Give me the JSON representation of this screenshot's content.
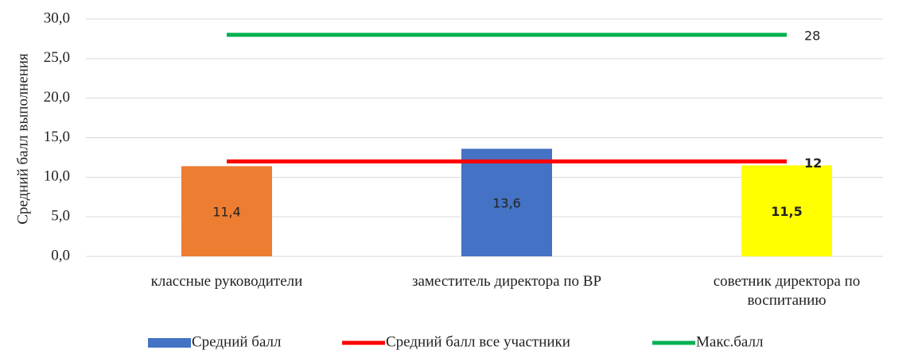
{
  "chart_data": {
    "type": "bar",
    "y_label": "Средний балл выполнения",
    "categories": [
      "классные руководители",
      "заместитель директора по ВР",
      "советник директора по воспитанию"
    ],
    "series": [
      {
        "name": "Средний балл",
        "type": "bar",
        "colors": [
          "#ed7d31",
          "#4472c4",
          "#ffff00"
        ],
        "values": [
          11.4,
          13.6,
          11.5
        ],
        "value_labels": [
          "11,4",
          "13,6",
          "11,5"
        ],
        "label_colors": [
          "#ffffff",
          "#ffffff",
          "#404040"
        ]
      },
      {
        "name": "Средний балл все участники",
        "type": "line",
        "color": "#ff0000",
        "values": [
          12,
          12,
          12
        ],
        "value_labels": [
          null,
          null,
          "12"
        ]
      },
      {
        "name": "Макс.балл",
        "type": "line",
        "color": "#00b050",
        "values": [
          28,
          28,
          28
        ],
        "value_labels": [
          null,
          null,
          "28"
        ]
      }
    ],
    "ylim": [
      0,
      30
    ],
    "yticks": [
      {
        "value": 0,
        "label": "0,0"
      },
      {
        "value": 5,
        "label": "5,0"
      },
      {
        "value": 10,
        "label": "10,0"
      },
      {
        "value": 15,
        "label": "15,0"
      },
      {
        "value": 20,
        "label": "20,0"
      },
      {
        "value": 25,
        "label": "25,0"
      },
      {
        "value": 30,
        "label": "30,0"
      }
    ],
    "grid": true,
    "legend": "bottom"
  }
}
